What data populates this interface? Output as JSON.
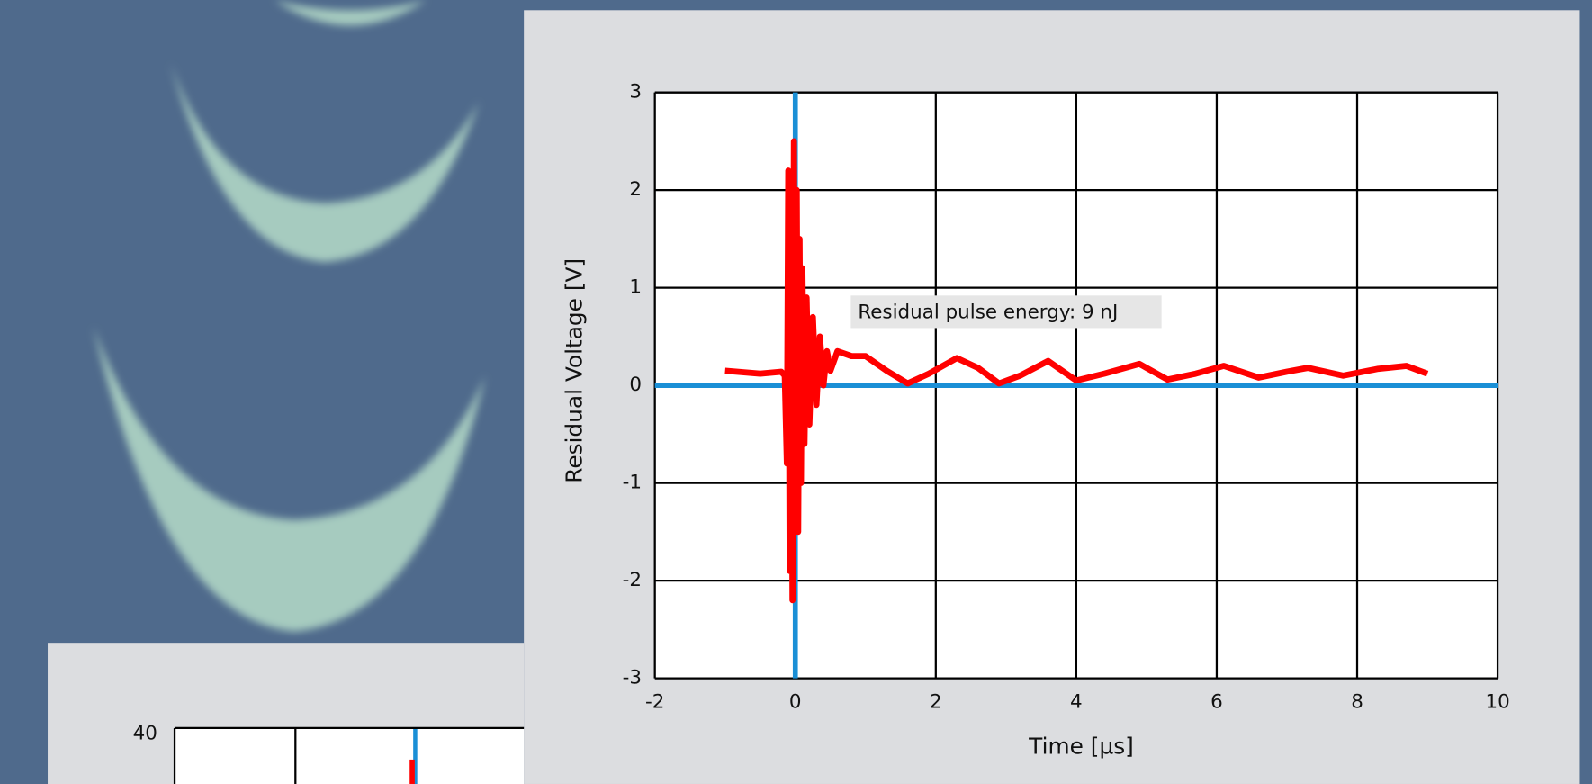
{
  "chart_data": [
    {
      "type": "line",
      "x_label": "Time [µs]",
      "y_label": "Residual Voltage [V]",
      "annotation": "Residual pulse energy: 9 nJ",
      "x": [
        -1,
        -0.5,
        -0.2,
        -0.15,
        -0.12,
        -0.1,
        -0.08,
        -0.06,
        -0.04,
        -0.02,
        0,
        0.02,
        0.04,
        0.06,
        0.08,
        0.1,
        0.13,
        0.16,
        0.2,
        0.25,
        0.3,
        0.35,
        0.4,
        0.45,
        0.5,
        0.6,
        0.8,
        1.0,
        1.3,
        1.6,
        1.9,
        2.3,
        2.6,
        2.9,
        3.2,
        3.6,
        4.0,
        4.4,
        4.9,
        5.3,
        5.7,
        6.1,
        6.6,
        7.0,
        7.3,
        7.8,
        8.3,
        8.7,
        9.0
      ],
      "series": [
        {
          "color": "#ff0000",
          "values": [
            0.15,
            0.12,
            0.14,
            0.1,
            -0.8,
            2.2,
            -1.9,
            2.0,
            -2.2,
            2.5,
            -1.5,
            2.0,
            -1.5,
            1.5,
            -1.0,
            1.2,
            -0.6,
            0.9,
            -0.4,
            0.7,
            -0.2,
            0.5,
            0.0,
            0.35,
            0.15,
            0.35,
            0.3,
            0.3,
            0.15,
            0.02,
            0.12,
            0.28,
            0.18,
            0.02,
            0.1,
            0.25,
            0.05,
            0.12,
            0.22,
            0.06,
            0.12,
            0.2,
            0.08,
            0.14,
            0.18,
            0.1,
            0.17,
            0.2,
            0.12
          ]
        }
      ],
      "xlim": [
        -2,
        10
      ],
      "ylim": [
        -3,
        3
      ],
      "xticks": [
        -2,
        0,
        2,
        4,
        6,
        8,
        10
      ],
      "yticks": [
        -3,
        -2,
        -1,
        0,
        1,
        2,
        3
      ],
      "grid": true
    },
    {
      "type": "line",
      "yticks": [
        40
      ]
    }
  ]
}
